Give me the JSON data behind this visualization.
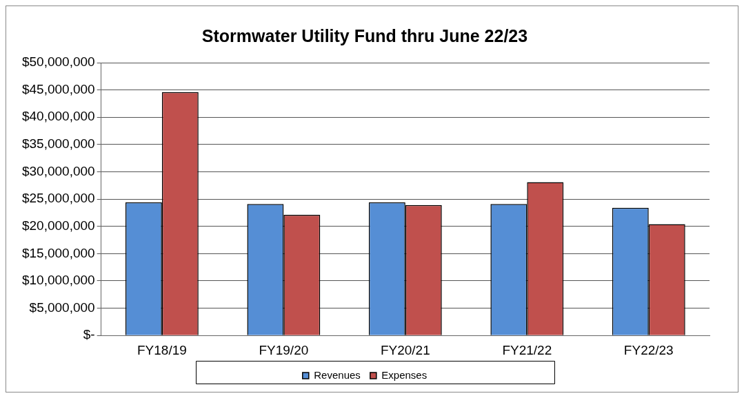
{
  "chart_data": {
    "type": "bar",
    "title": "Stormwater Utility Fund thru June 22/23",
    "categories": [
      "FY18/19",
      "FY19/20",
      "FY20/21",
      "FY21/22",
      "FY22/23"
    ],
    "series": [
      {
        "name": "Revenues",
        "color": "#558ed5",
        "values": [
          24400000,
          24100000,
          24400000,
          24100000,
          23400000
        ]
      },
      {
        "name": "Expenses",
        "color": "#c0504d",
        "values": [
          44600000,
          22100000,
          23900000,
          28100000,
          20400000
        ]
      }
    ],
    "ylim": [
      0,
      50000000
    ],
    "yticks": [
      {
        "value": 0,
        "label": "$-"
      },
      {
        "value": 5000000,
        "label": "$5,000,000"
      },
      {
        "value": 10000000,
        "label": "$10,000,000"
      },
      {
        "value": 15000000,
        "label": "$15,000,000"
      },
      {
        "value": 20000000,
        "label": "$20,000,000"
      },
      {
        "value": 25000000,
        "label": "$25,000,000"
      },
      {
        "value": 30000000,
        "label": "$30,000,000"
      },
      {
        "value": 35000000,
        "label": "$35,000,000"
      },
      {
        "value": 40000000,
        "label": "$40,000,000"
      },
      {
        "value": 45000000,
        "label": "$45,000,000"
      },
      {
        "value": 50000000,
        "label": "$50,000,000"
      }
    ],
    "grid": "y",
    "legend": "bottom"
  }
}
